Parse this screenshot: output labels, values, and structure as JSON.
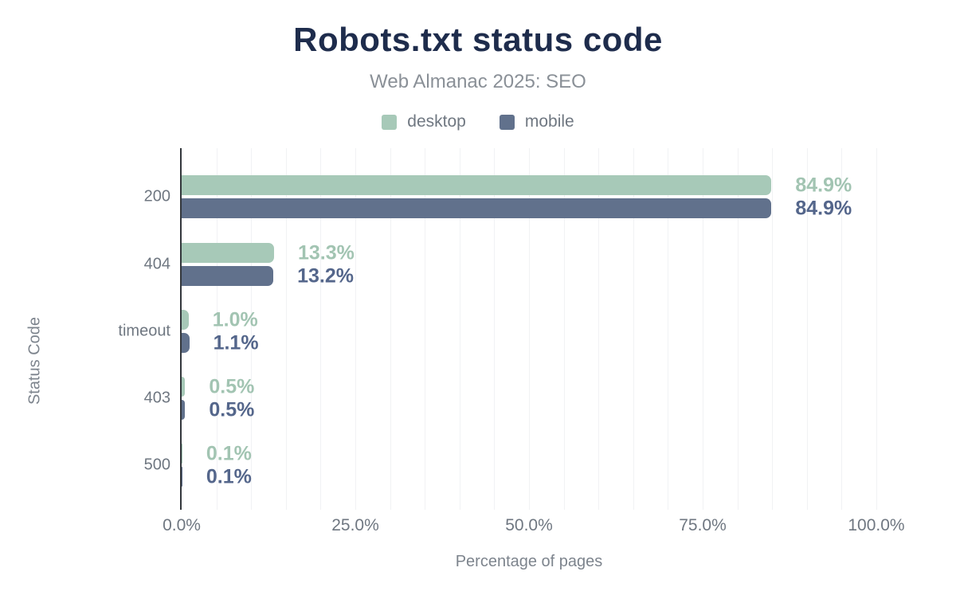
{
  "chart_data": {
    "type": "bar",
    "orientation": "horizontal",
    "title": "Robots.txt status code",
    "subtitle": "Web Almanac 2025: SEO",
    "xlabel": "Percentage of pages",
    "ylabel": "Status Code",
    "categories": [
      "200",
      "404",
      "timeout",
      "403",
      "500"
    ],
    "series": [
      {
        "name": "desktop",
        "color": "#a7c9b8",
        "label_color": "#a2c4b2",
        "values": [
          84.9,
          13.3,
          1.0,
          0.5,
          0.1
        ],
        "labels": [
          "84.9%",
          "13.3%",
          "1.0%",
          "0.5%",
          "0.1%"
        ]
      },
      {
        "name": "mobile",
        "color": "#61718c",
        "label_color": "#54668b",
        "values": [
          84.9,
          13.2,
          1.1,
          0.5,
          0.1
        ],
        "labels": [
          "84.9%",
          "13.2%",
          "1.1%",
          "0.5%",
          "0.1%"
        ]
      }
    ],
    "x_ticks": [
      "0.0%",
      "25.0%",
      "50.0%",
      "75.0%",
      "100.0%"
    ],
    "x_tick_values": [
      0,
      25,
      50,
      75,
      100
    ],
    "xlim": [
      0,
      100
    ],
    "grid": "faint vertical gridlines every 5%",
    "legend_position": "top",
    "colors": {
      "title": "#1e2c4c",
      "subtitle": "#8a9097",
      "category_text": "#6f7781",
      "tick_text": "#6f7781",
      "axis_title_text": "#7d848d",
      "legend_text": "#6f7781",
      "axis_line": "#33373c",
      "gridline": "#f1f2f4",
      "background": "#ffffff"
    }
  }
}
